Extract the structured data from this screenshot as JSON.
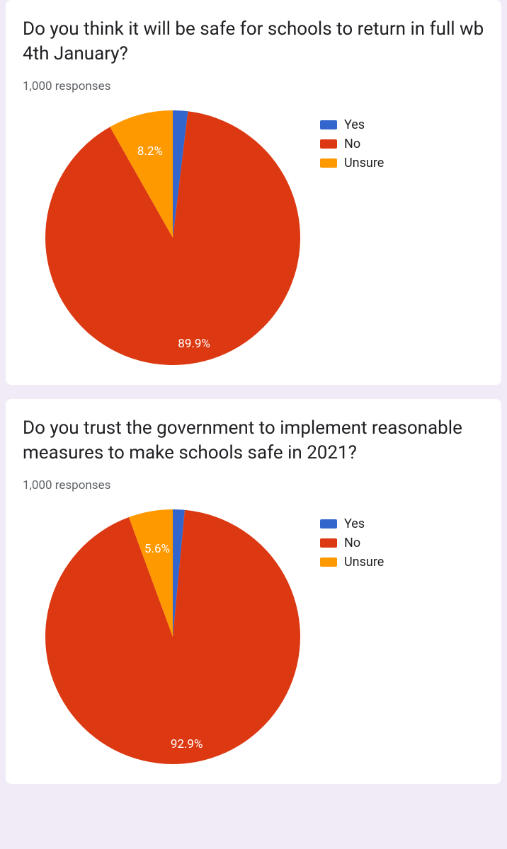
{
  "background_color": "#f0ebf7",
  "card_background": "#ffffff",
  "cards": [
    {
      "title": "Do you think it will be safe for schools to return in full wb 4th January?",
      "responses_label": "1,000 responses",
      "chart": {
        "type": "pie",
        "radius": 180,
        "slices": [
          {
            "label": "Yes",
            "value": 1.9,
            "color": "#3366cc"
          },
          {
            "label": "No",
            "value": 89.9,
            "color": "#dc3913"
          },
          {
            "label": "Unsure",
            "value": 8.2,
            "color": "#ff9900"
          }
        ],
        "start_angle_deg": 0,
        "visible_labels": [
          {
            "text": "89.9%",
            "slice_index": 1,
            "rfrac": 0.85
          },
          {
            "text": "8.2%",
            "slice_index": 2,
            "rfrac": 0.7
          }
        ],
        "label_fontsize": 17,
        "label_color": "#ffffff"
      },
      "legend": [
        {
          "label": "Yes",
          "color": "#3366cc"
        },
        {
          "label": "No",
          "color": "#dc3913"
        },
        {
          "label": "Unsure",
          "color": "#ff9900"
        }
      ]
    },
    {
      "title": "Do you trust the government to implement reasonable measures to make schools safe in 2021?",
      "responses_label": "1,000 responses",
      "chart": {
        "type": "pie",
        "radius": 180,
        "slices": [
          {
            "label": "Yes",
            "value": 1.5,
            "color": "#3366cc"
          },
          {
            "label": "No",
            "value": 92.9,
            "color": "#dc3913"
          },
          {
            "label": "Unsure",
            "value": 5.6,
            "color": "#ff9900"
          }
        ],
        "start_angle_deg": 0,
        "visible_labels": [
          {
            "text": "92.9%",
            "slice_index": 1,
            "rfrac": 0.85
          },
          {
            "text": "5.6%",
            "slice_index": 2,
            "rfrac": 0.7
          }
        ],
        "label_fontsize": 17,
        "label_color": "#ffffff"
      },
      "legend": [
        {
          "label": "Yes",
          "color": "#3366cc"
        },
        {
          "label": "No",
          "color": "#dc3913"
        },
        {
          "label": "Unsure",
          "color": "#ff9900"
        }
      ]
    }
  ],
  "typography": {
    "title_fontsize": 26,
    "title_color": "#202124",
    "responses_fontsize": 17,
    "responses_color": "#5f6368",
    "legend_fontsize": 18,
    "legend_color": "#202124"
  }
}
